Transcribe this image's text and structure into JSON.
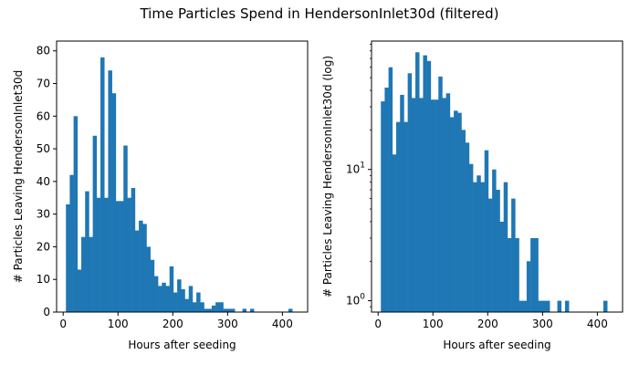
{
  "figure": {
    "title": "Time Particles Spend in HendersonInlet30d (filtered)"
  },
  "chart_data": [
    {
      "type": "bar",
      "subtype": "histogram",
      "scale": "linear",
      "xlabel": "Hours after seeding",
      "ylabel": "# Particles Leaving HendersonInlet30d",
      "xlim": [
        -12,
        446
      ],
      "ylim": [
        0,
        83
      ],
      "xticks": [
        0,
        100,
        200,
        300,
        400
      ],
      "yticks": [
        0,
        10,
        20,
        30,
        40,
        50,
        60,
        70,
        80
      ],
      "bin_start": 5,
      "bin_width": 7,
      "values": [
        33,
        42,
        60,
        13,
        23,
        37,
        23,
        54,
        35,
        78,
        35,
        74,
        67,
        34,
        34,
        51,
        35,
        38,
        25,
        28,
        27,
        20,
        16,
        11,
        8,
        9,
        8,
        14,
        6,
        10,
        7,
        4,
        8,
        3,
        6,
        3,
        1,
        1,
        2,
        3,
        3,
        1,
        1,
        1,
        0,
        0,
        1,
        0,
        1,
        0,
        0,
        0,
        0,
        0,
        0,
        0,
        0,
        0,
        1,
        0,
        0
      ]
    },
    {
      "type": "bar",
      "subtype": "histogram",
      "scale": "log",
      "xlabel": "Hours after seeding",
      "ylabel": "# Particles Leaving HendersonInlet30d (log)",
      "xlim": [
        -12,
        446
      ],
      "ylim": [
        0.82,
        95
      ],
      "xticks": [
        0,
        100,
        200,
        300,
        400
      ],
      "ytick_labels": [
        "10^0",
        "10^1"
      ],
      "bin_start": 5,
      "bin_width": 7,
      "values": [
        33,
        42,
        60,
        13,
        23,
        37,
        23,
        54,
        35,
        78,
        35,
        74,
        67,
        34,
        34,
        51,
        35,
        38,
        25,
        28,
        27,
        20,
        16,
        11,
        8,
        9,
        8,
        14,
        6,
        10,
        7,
        4,
        8,
        3,
        6,
        3,
        1,
        1,
        2,
        3,
        3,
        1,
        1,
        1,
        0,
        0,
        1,
        0,
        1,
        0,
        0,
        0,
        0,
        0,
        0,
        0,
        0,
        0,
        1,
        0,
        0
      ]
    }
  ]
}
